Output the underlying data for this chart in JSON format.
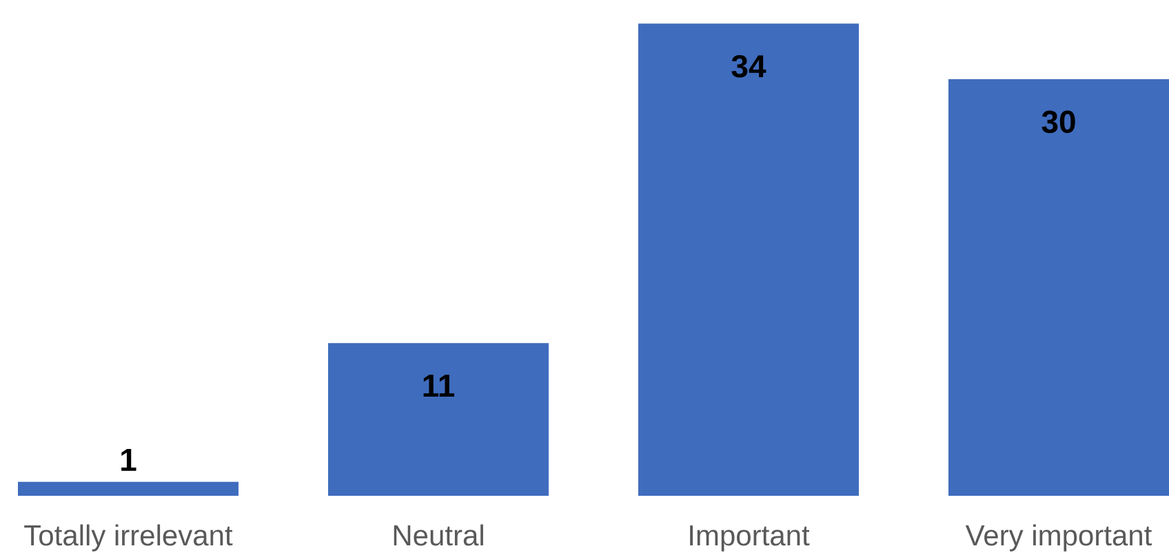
{
  "chart_data": {
    "type": "bar",
    "categories": [
      "Totally irrelevant",
      "Neutral",
      "Important",
      "Very important"
    ],
    "values": [
      1,
      11,
      34,
      30
    ],
    "color": "#3f6cbd",
    "data_labels": true
  }
}
